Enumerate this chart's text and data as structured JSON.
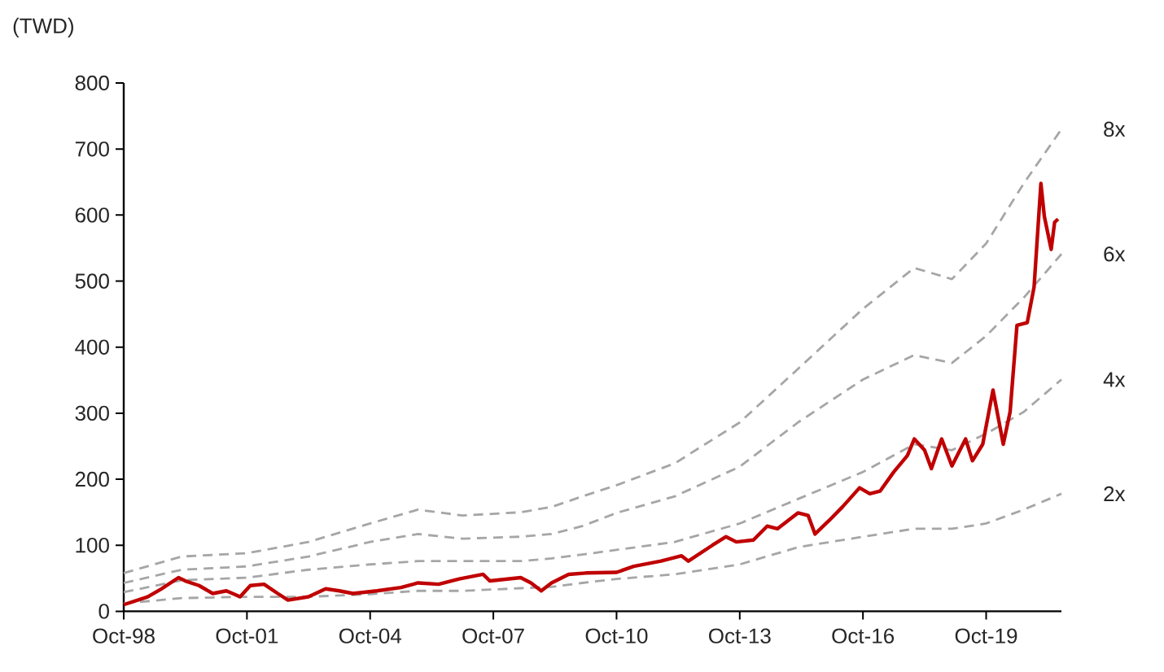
{
  "chart_data": {
    "type": "line",
    "ylabel": "(TWD)",
    "marker": "none",
    "xlim": [
      "1998-10",
      "2021-08"
    ],
    "ylim": [
      0,
      800
    ],
    "xticks": [
      {
        "value": "1998-10",
        "label": "Oct-98"
      },
      {
        "value": "2001-10",
        "label": "Oct-01"
      },
      {
        "value": "2004-10",
        "label": "Oct-04"
      },
      {
        "value": "2007-10",
        "label": "Oct-07"
      },
      {
        "value": "2010-10",
        "label": "Oct-10"
      },
      {
        "value": "2013-10",
        "label": "Oct-13"
      },
      {
        "value": "2016-10",
        "label": "Oct-16"
      },
      {
        "value": "2019-10",
        "label": "Oct-19"
      }
    ],
    "yticks": [
      0,
      100,
      200,
      300,
      400,
      500,
      600,
      700,
      800
    ],
    "series": [
      {
        "name": "8x",
        "color": "#a6a6a6",
        "line_style": "dashed",
        "x": [
          "1998-10",
          "2000-03",
          "2001-10",
          "2003-04",
          "2004-10",
          "2005-12",
          "2007-01",
          "2008-06",
          "2009-03",
          "2009-12",
          "2010-10",
          "2012-03",
          "2013-10",
          "2015-03",
          "2016-10",
          "2018-01",
          "2018-12",
          "2019-10",
          "2020-09",
          "2021-08"
        ],
        "values": [
          58,
          83,
          88,
          105,
          133,
          154,
          145,
          150,
          158,
          174,
          191,
          224,
          286,
          367,
          458,
          520,
          503,
          557,
          648,
          730
        ]
      },
      {
        "name": "6x",
        "color": "#a6a6a6",
        "line_style": "dashed",
        "x": [
          "1998-10",
          "2000-03",
          "2001-10",
          "2003-04",
          "2004-10",
          "2005-12",
          "2007-01",
          "2008-06",
          "2009-03",
          "2009-12",
          "2010-10",
          "2012-03",
          "2013-10",
          "2015-03",
          "2016-10",
          "2018-01",
          "2018-12",
          "2019-10",
          "2020-09",
          "2021-08"
        ],
        "values": [
          43,
          63,
          68,
          83,
          105,
          117,
          110,
          113,
          117,
          129,
          149,
          174,
          219,
          286,
          351,
          388,
          376,
          417,
          475,
          541
        ]
      },
      {
        "name": "4x",
        "color": "#a6a6a6",
        "line_style": "dashed",
        "x": [
          "1998-10",
          "2000-03",
          "2001-10",
          "2003-04",
          "2004-10",
          "2005-12",
          "2007-01",
          "2008-06",
          "2009-03",
          "2009-12",
          "2010-10",
          "2012-03",
          "2013-10",
          "2015-03",
          "2016-10",
          "2018-01",
          "2018-12",
          "2019-10",
          "2020-09",
          "2021-08"
        ],
        "values": [
          29,
          47,
          51,
          63,
          71,
          76,
          76,
          76,
          80,
          86,
          93,
          105,
          133,
          170,
          211,
          253,
          244,
          269,
          302,
          351
        ]
      },
      {
        "name": "2x",
        "color": "#a6a6a6",
        "line_style": "dashed",
        "x": [
          "1998-10",
          "2000-03",
          "2001-10",
          "2003-04",
          "2004-10",
          "2005-12",
          "2007-01",
          "2008-06",
          "2009-03",
          "2009-12",
          "2010-10",
          "2012-03",
          "2013-10",
          "2015-03",
          "2016-10",
          "2018-01",
          "2018-12",
          "2019-10",
          "2020-09",
          "2021-08"
        ],
        "values": [
          12,
          20,
          22,
          22,
          26,
          31,
          31,
          35,
          37,
          43,
          49,
          56,
          71,
          97,
          113,
          125,
          125,
          133,
          154,
          178
        ]
      },
      {
        "color": "#c00000",
        "line_style": "solid",
        "x": [
          "1998-10",
          "1999-05",
          "1999-09",
          "2000-02",
          "2000-04",
          "2000-08",
          "2000-12",
          "2001-04",
          "2001-08",
          "2001-11",
          "2002-03",
          "2002-07",
          "2002-10",
          "2003-04",
          "2003-09",
          "2004-01",
          "2004-05",
          "2004-12",
          "2005-07",
          "2005-12",
          "2006-06",
          "2006-12",
          "2007-07",
          "2007-09",
          "2008-06",
          "2008-09",
          "2008-12",
          "2009-03",
          "2009-08",
          "2010-01",
          "2010-10",
          "2011-03",
          "2011-11",
          "2012-05",
          "2012-07",
          "2013-02",
          "2013-06",
          "2013-09",
          "2014-02",
          "2014-06",
          "2014-09",
          "2015-03",
          "2015-06",
          "2015-08",
          "2015-12",
          "2016-04",
          "2016-09",
          "2016-12",
          "2017-03",
          "2017-07",
          "2017-11",
          "2018-01",
          "2018-04",
          "2018-06",
          "2018-09",
          "2018-12",
          "2019-04",
          "2019-06",
          "2019-09",
          "2019-12",
          "2020-03",
          "2020-05",
          "2020-07",
          "2020-10",
          "2020-12",
          "2021-02",
          "2021-03",
          "2021-05",
          "2021-06",
          "2021-07"
        ],
        "values": [
          10,
          22,
          34,
          51,
          46,
          39,
          27,
          31,
          22,
          39,
          41,
          27,
          17,
          22,
          34,
          31,
          27,
          31,
          36,
          43,
          41,
          49,
          56,
          46,
          51,
          43,
          31,
          43,
          56,
          58,
          59,
          68,
          76,
          84,
          76,
          100,
          113,
          105,
          108,
          129,
          125,
          149,
          145,
          117,
          137,
          158,
          187,
          178,
          182,
          211,
          236,
          261,
          244,
          216,
          261,
          220,
          261,
          228,
          253,
          335,
          253,
          302,
          433,
          437,
          491,
          648,
          598,
          548,
          589,
          594
        ]
      }
    ]
  }
}
